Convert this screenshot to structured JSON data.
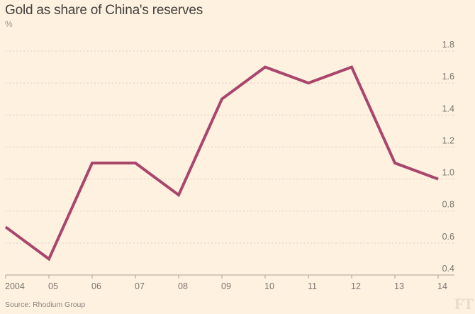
{
  "chart_data": {
    "type": "line",
    "title": "Gold as share of China's reserves",
    "subtitle": "%",
    "source": "Source: Rhodium Group",
    "logo": "FT",
    "xlabel": "",
    "ylabel": "%",
    "x": [
      "2004",
      "05",
      "06",
      "07",
      "08",
      "09",
      "10",
      "11",
      "12",
      "13",
      "14"
    ],
    "series": [
      {
        "name": "Gold as share of China's reserves",
        "values": [
          0.7,
          0.5,
          1.1,
          1.1,
          0.9,
          1.5,
          1.7,
          1.6,
          1.7,
          1.1,
          1.0
        ],
        "color": "#a8466b"
      }
    ],
    "ylim": [
      0.4,
      1.8
    ],
    "yticks": [
      "0.4",
      "0.6",
      "0.8",
      "1.0",
      "1.2",
      "1.4",
      "1.6",
      "1.8"
    ],
    "grid": true,
    "y_axis_side": "right"
  }
}
